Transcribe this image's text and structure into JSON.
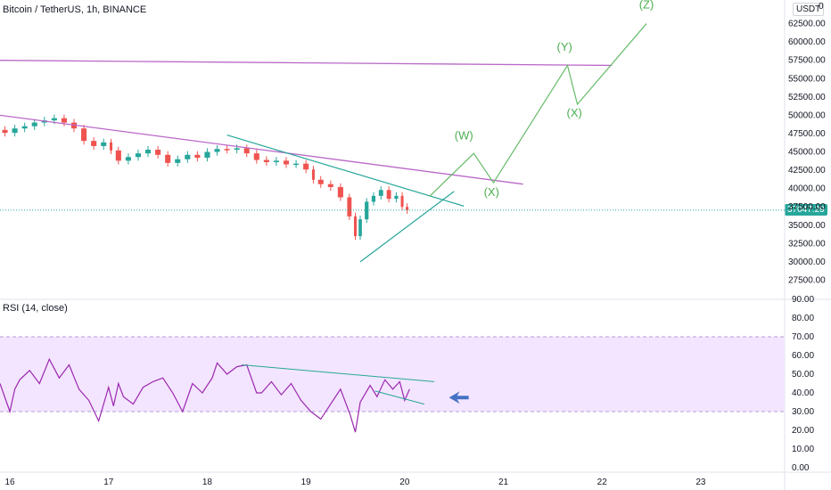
{
  "header": {
    "symbol_title": "Bitcoin / TetherUS, 1h, BINANCE",
    "currency": "USDT",
    "corner_label": "0"
  },
  "rsi": {
    "title": "RSI (14, close)",
    "upper_band": 70,
    "lower_band": 30
  },
  "price_badge": "37047.29",
  "colors": {
    "up": "#26a69a",
    "down": "#ef5350",
    "resistance_line": "#ba68c8",
    "triangle_line": "#26a69a",
    "wave_projection": "#66bb6a",
    "rsi_line": "#9c27b0",
    "rsi_band_fill": "#f3e5ff",
    "arrow": "#4472c4",
    "last_price": "#26a69a"
  },
  "chart_data": [
    {
      "type": "candlestick",
      "title": "Bitcoin / TetherUS, 1h, BINANCE",
      "y_unit": "USDT",
      "ylim": [
        25000,
        65000
      ],
      "x_ticks": [
        "16",
        "17",
        "18",
        "19",
        "20",
        "21",
        "22",
        "23"
      ],
      "y_ticks": [
        "27500.00",
        "30000.00",
        "32500.00",
        "35000.00",
        "37500.00",
        "40000.00",
        "42500.00",
        "45000.00",
        "47500.00",
        "50000.00",
        "52500.00",
        "55000.00",
        "57500.00",
        "60000.00",
        "62500.00"
      ],
      "last_price": 37047.29,
      "close_series": [
        [
          15.9,
          48000
        ],
        [
          16.0,
          47600
        ],
        [
          16.1,
          48200
        ],
        [
          16.2,
          48500
        ],
        [
          16.3,
          49000
        ],
        [
          16.4,
          49300
        ],
        [
          16.5,
          49600
        ],
        [
          16.6,
          49000
        ],
        [
          16.7,
          48200
        ],
        [
          16.8,
          46500
        ],
        [
          16.9,
          45800
        ],
        [
          17.0,
          46300
        ],
        [
          17.05,
          45200
        ],
        [
          17.15,
          43800
        ],
        [
          17.25,
          44300
        ],
        [
          17.35,
          44800
        ],
        [
          17.45,
          45300
        ],
        [
          17.55,
          44600
        ],
        [
          17.65,
          43500
        ],
        [
          17.75,
          44000
        ],
        [
          17.85,
          44600
        ],
        [
          17.95,
          44200
        ],
        [
          18.05,
          45000
        ],
        [
          18.15,
          45400
        ],
        [
          18.25,
          45300
        ],
        [
          18.35,
          45500
        ],
        [
          18.45,
          44800
        ],
        [
          18.55,
          43900
        ],
        [
          18.65,
          43600
        ],
        [
          18.75,
          43800
        ],
        [
          18.85,
          43300
        ],
        [
          18.95,
          43400
        ],
        [
          19.05,
          42600
        ],
        [
          19.1,
          41200
        ],
        [
          19.2,
          40600
        ],
        [
          19.3,
          40200
        ],
        [
          19.4,
          38800
        ],
        [
          19.48,
          36200
        ],
        [
          19.52,
          33500
        ],
        [
          19.58,
          35800
        ],
        [
          19.65,
          38200
        ],
        [
          19.72,
          39000
        ],
        [
          19.8,
          39800
        ],
        [
          19.88,
          38600
        ],
        [
          19.95,
          39000
        ],
        [
          20.0,
          37500
        ],
        [
          20.05,
          37047
        ]
      ],
      "resistance_lines": [
        {
          "name": "upper",
          "from": [
            15.9,
            57500
          ],
          "to": [
            22.1,
            56800
          ]
        },
        {
          "name": "lower",
          "from": [
            15.9,
            50000
          ],
          "to": [
            21.2,
            40600
          ]
        }
      ],
      "triangle": {
        "upper": {
          "from": [
            18.2,
            47300
          ],
          "to": [
            20.6,
            37600
          ]
        },
        "lower": {
          "from": [
            19.55,
            30000
          ],
          "to": [
            20.5,
            39600
          ]
        }
      },
      "projection_path": [
        [
          20.25,
          38900
        ],
        [
          20.7,
          44800
        ],
        [
          20.9,
          40800
        ],
        [
          21.65,
          56800
        ],
        [
          21.75,
          51500
        ],
        [
          22.45,
          62500
        ]
      ],
      "wave_labels": [
        {
          "text": "(W)",
          "x": 20.6,
          "y": 46700
        },
        {
          "text": "(X)",
          "x": 20.88,
          "y": 39000
        },
        {
          "text": "(Y)",
          "x": 21.62,
          "y": 58800
        },
        {
          "text": "(X)",
          "x": 21.72,
          "y": 49800
        },
        {
          "text": "(Z)",
          "x": 22.45,
          "y": 64600
        }
      ]
    },
    {
      "type": "line",
      "title": "RSI (14, close)",
      "ylim": [
        0,
        90
      ],
      "y_ticks": [
        "0.00",
        "10.00",
        "20.00",
        "30.00",
        "40.00",
        "50.00",
        "60.00",
        "70.00",
        "80.00",
        "90.00"
      ],
      "series": [
        {
          "values": [
            [
              15.9,
              45
            ],
            [
              16.0,
              30
            ],
            [
              16.05,
              42
            ],
            [
              16.1,
              47
            ],
            [
              16.2,
              52
            ],
            [
              16.3,
              45
            ],
            [
              16.4,
              58
            ],
            [
              16.5,
              48
            ],
            [
              16.6,
              55
            ],
            [
              16.7,
              42
            ],
            [
              16.8,
              36
            ],
            [
              16.9,
              25
            ],
            [
              17.0,
              43
            ],
            [
              17.05,
              33
            ],
            [
              17.1,
              45
            ],
            [
              17.15,
              38
            ],
            [
              17.25,
              34
            ],
            [
              17.35,
              43
            ],
            [
              17.45,
              46
            ],
            [
              17.55,
              48
            ],
            [
              17.65,
              40
            ],
            [
              17.75,
              30
            ],
            [
              17.85,
              45
            ],
            [
              17.95,
              40
            ],
            [
              18.05,
              48
            ],
            [
              18.1,
              56
            ],
            [
              18.2,
              50
            ],
            [
              18.3,
              54
            ],
            [
              18.4,
              55
            ],
            [
              18.5,
              40
            ],
            [
              18.55,
              40
            ],
            [
              18.65,
              46
            ],
            [
              18.75,
              39
            ],
            [
              18.85,
              45
            ],
            [
              18.95,
              36
            ],
            [
              19.05,
              30
            ],
            [
              19.15,
              26
            ],
            [
              19.25,
              34
            ],
            [
              19.35,
              42
            ],
            [
              19.45,
              28
            ],
            [
              19.5,
              19
            ],
            [
              19.55,
              35
            ],
            [
              19.65,
              44
            ],
            [
              19.72,
              38
            ],
            [
              19.8,
              47
            ],
            [
              19.88,
              42
            ],
            [
              19.95,
              46
            ],
            [
              20.0,
              36
            ],
            [
              20.05,
              42
            ]
          ]
        }
      ],
      "trendlines": [
        {
          "from": [
            18.35,
            55
          ],
          "to": [
            20.3,
            46
          ]
        },
        {
          "from": [
            19.7,
            41
          ],
          "to": [
            20.2,
            34
          ]
        }
      ],
      "arrow_at": [
        20.45,
        37.5
      ]
    }
  ]
}
